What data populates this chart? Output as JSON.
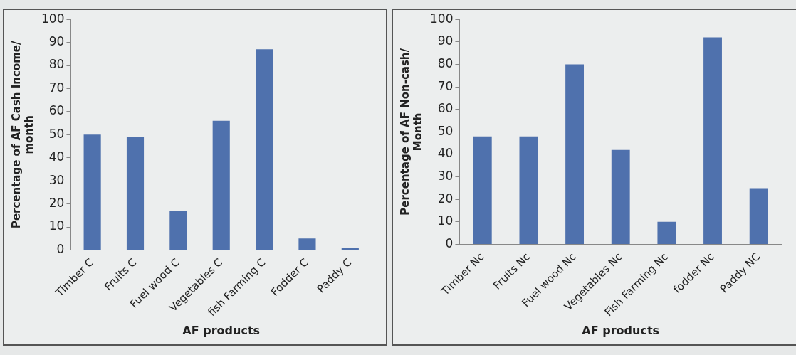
{
  "chart_data": [
    {
      "type": "bar",
      "xlabel": "AF products",
      "ylabel": "Percentage of AF Cash Income/ month",
      "categories": [
        "Timber C",
        "Fruits C",
        "Fuel wood C",
        "Vegetables C",
        "fish Farming C",
        "Fodder C",
        "Paddy C"
      ],
      "values": [
        50,
        49,
        17,
        56,
        87,
        5,
        1
      ],
      "color": "#4f71ad",
      "ylim": [
        0,
        100
      ],
      "yticks": [
        0,
        10,
        20,
        30,
        40,
        50,
        60,
        70,
        80,
        90,
        100
      ],
      "grid": false,
      "legend": false
    },
    {
      "type": "bar",
      "xlabel": "AF products",
      "ylabel": "Percentage of AF Non-cash/ Month",
      "categories": [
        "Timber Nc",
        "Fruits Nc",
        "Fuel wood Nc",
        "Vegetables Nc",
        "Fish Farming Nc",
        "fodder Nc",
        "Paddy NC"
      ],
      "values": [
        48,
        48,
        80,
        42,
        10,
        92,
        25
      ],
      "color": "#4f71ad",
      "ylim": [
        0,
        100
      ],
      "yticks": [
        0,
        10,
        20,
        30,
        40,
        50,
        60,
        70,
        80,
        90,
        100
      ],
      "grid": false,
      "legend": false
    }
  ]
}
